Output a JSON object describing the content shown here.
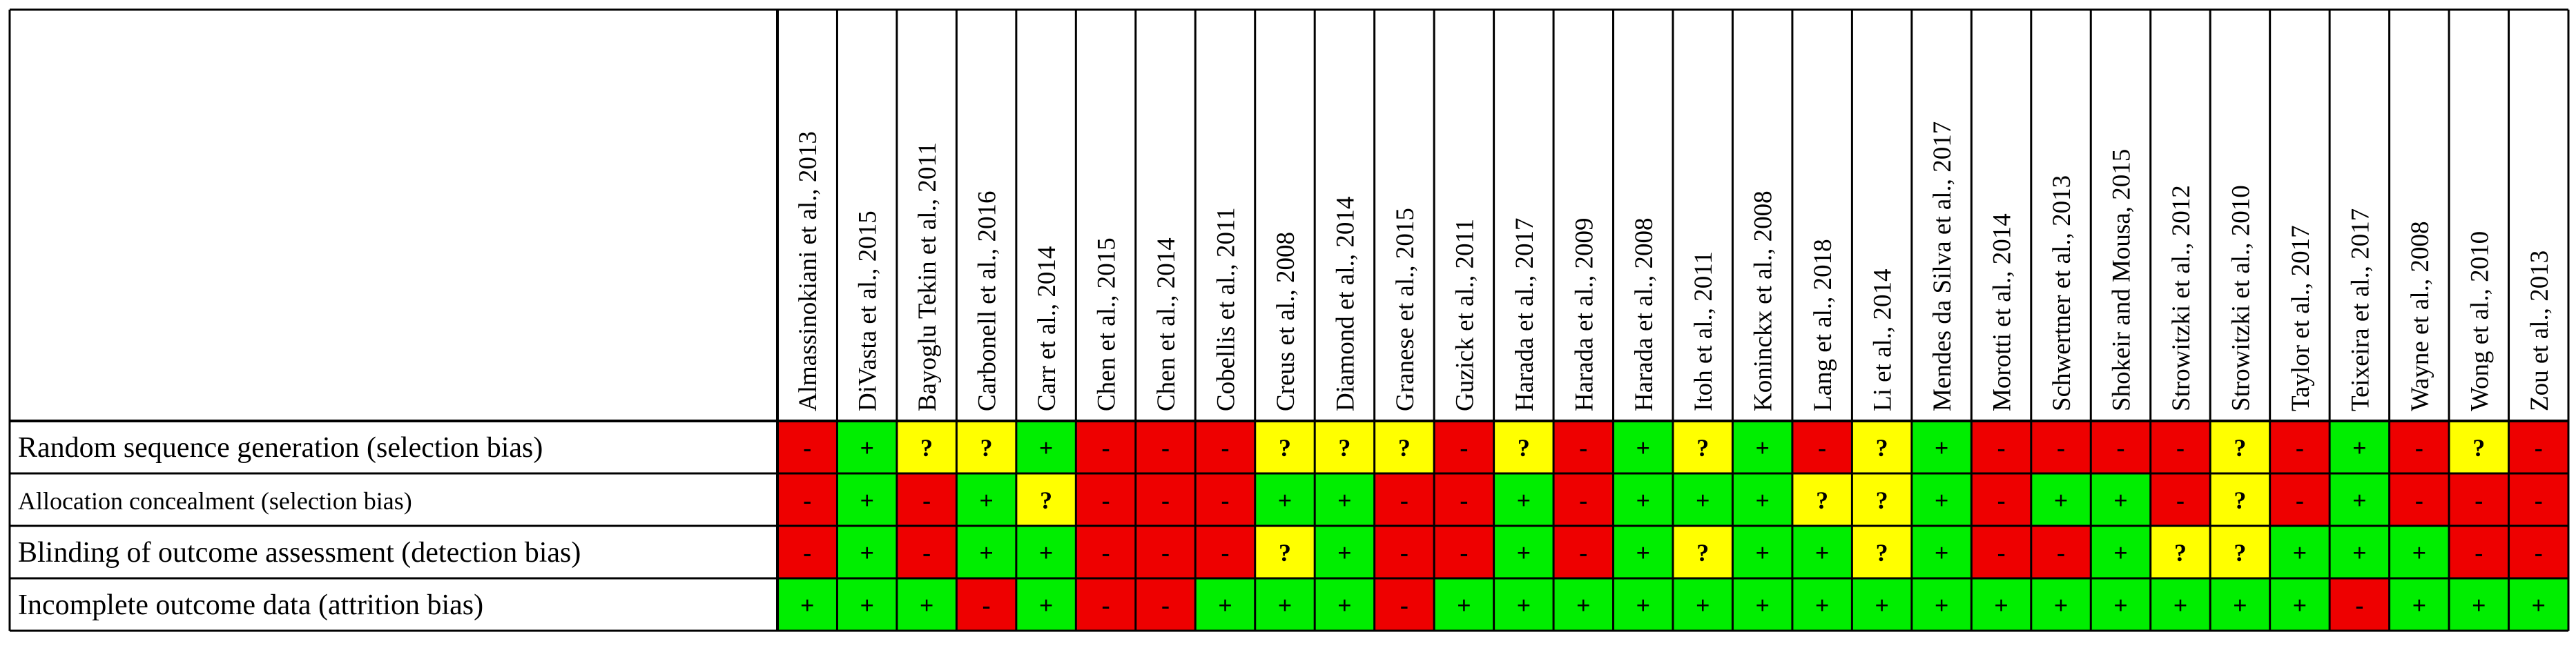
{
  "chart_data": {
    "type": "table",
    "title": "",
    "studies": [
      "Almassinokiani et al., 2013",
      "DiVasta et al., 2015",
      "Bayoglu Tekin et al., 2011",
      "Carbonell et al., 2016",
      "Carr et al., 2014",
      "Chen et al., 2015",
      "Chen et al., 2014",
      "Cobellis et al., 2011",
      "Creus et al., 2008",
      "Diamond et al., 2014",
      "Granese et al., 2015",
      "Guzick et al., 2011",
      "Harada et al., 2017",
      "Harada et al., 2009",
      "Harada et al., 2008",
      "Itoh et al., 2011",
      "Koninckx et al., 2008",
      "Lang et al., 2018",
      "Li et al., 2014",
      "Mendes da Silva et al., 2017",
      "Morotti et al., 2014",
      "Schwertner et al., 2013",
      "Shokeir and Mousa, 2015",
      "Strowitzki et al., 2012",
      "Strowitzki et al., 2010",
      "Taylor et al., 2017",
      "Teixeira et al., 2017",
      "Wayne et al., 2008",
      "Wong et al., 2010",
      "Zou et al., 2013"
    ],
    "domains": [
      {
        "label": "Random sequence generation (selection bias)",
        "values": [
          "-",
          "+",
          "?",
          "?",
          "+",
          "-",
          "-",
          "-",
          "?",
          "?",
          "?",
          "-",
          "?",
          "-",
          "+",
          "?",
          "+",
          "-",
          "?",
          "+",
          "-",
          "-",
          "-",
          "-",
          "?",
          "-",
          "+",
          "-",
          "?",
          "-"
        ]
      },
      {
        "label": "Allocation concealment (selection bias)",
        "values": [
          "-",
          "+",
          "-",
          "+",
          "?",
          "-",
          "-",
          "-",
          "+",
          "+",
          "-",
          "-",
          "+",
          "-",
          "+",
          "+",
          "+",
          "?",
          "?",
          "+",
          "-",
          "+",
          "+",
          "-",
          "?",
          "-",
          "+",
          "-",
          "-",
          "-"
        ]
      },
      {
        "label": "Blinding of outcome assessment (detection bias)",
        "values": [
          "-",
          "+",
          "-",
          "+",
          "+",
          "-",
          "-",
          "-",
          "?",
          "+",
          "-",
          "-",
          "+",
          "-",
          "+",
          "?",
          "+",
          "+",
          "?",
          "+",
          "-",
          "-",
          "+",
          "?",
          "?",
          "+",
          "+",
          "+",
          "-",
          "-"
        ]
      },
      {
        "label": "Incomplete outcome data (attrition bias)",
        "values": [
          "+",
          "+",
          "+",
          "-",
          "+",
          "-",
          "-",
          "+",
          "+",
          "+",
          "-",
          "+",
          "+",
          "+",
          "+",
          "+",
          "+",
          "+",
          "+",
          "+",
          "+",
          "+",
          "+",
          "+",
          "+",
          "+",
          "-",
          "+",
          "+",
          "+"
        ]
      }
    ],
    "legend": {
      "+": "#00ee00",
      "-": "#ee0000",
      "?": "#ffff00"
    }
  }
}
